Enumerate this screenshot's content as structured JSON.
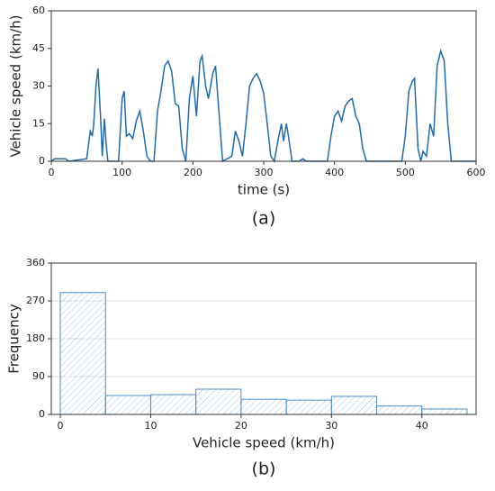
{
  "chart_data": [
    {
      "type": "line",
      "caption": "(a)",
      "xlabel": "time (s)",
      "ylabel": "Vehicle speed (km/h)",
      "color": "#1f6bb0",
      "grid": false,
      "xlim": [
        0,
        600
      ],
      "xticks": [
        0,
        100,
        200,
        300,
        400,
        500,
        600
      ],
      "ylim": [
        0,
        60
      ],
      "yticks": [
        0,
        15,
        30,
        45,
        60
      ],
      "x": [
        0,
        5,
        20,
        25,
        50,
        55,
        58,
        60,
        63,
        66,
        70,
        72,
        75,
        78,
        80,
        95,
        100,
        103,
        106,
        110,
        115,
        120,
        125,
        130,
        135,
        140,
        145,
        150,
        155,
        160,
        165,
        170,
        175,
        180,
        185,
        190,
        195,
        200,
        205,
        210,
        213,
        218,
        222,
        228,
        232,
        238,
        242,
        255,
        260,
        265,
        270,
        275,
        280,
        285,
        290,
        295,
        300,
        305,
        310,
        315,
        320,
        325,
        328,
        332,
        335,
        340,
        350,
        355,
        360,
        390,
        395,
        400,
        405,
        410,
        415,
        420,
        425,
        430,
        435,
        440,
        445,
        495,
        500,
        505,
        510,
        513,
        518,
        522,
        525,
        530,
        535,
        540,
        545,
        550,
        555,
        560,
        565,
        600
      ],
      "values": [
        0,
        1,
        1,
        0,
        1,
        12,
        10,
        15,
        30,
        37,
        15,
        2,
        17,
        5,
        0,
        0,
        25,
        28,
        10,
        11,
        9,
        16,
        20,
        12,
        2,
        0,
        0,
        20,
        28,
        38,
        40,
        36,
        23,
        22,
        5,
        0,
        25,
        34,
        18,
        40,
        42,
        30,
        25,
        35,
        38,
        15,
        0,
        2,
        12,
        8,
        2,
        15,
        30,
        33,
        35,
        32,
        27,
        15,
        2,
        0,
        8,
        15,
        8,
        15,
        10,
        0,
        0,
        1,
        0,
        0,
        10,
        18,
        20,
        16,
        22,
        24,
        25,
        18,
        15,
        5,
        0,
        0,
        10,
        28,
        32,
        33,
        5,
        0,
        4,
        2,
        15,
        10,
        38,
        44,
        40,
        15,
        0,
        0
      ]
    },
    {
      "type": "histogram",
      "caption": "(b)",
      "xlabel": "Vehicle speed (km/h)",
      "ylabel": "Frequency",
      "color": "#4a90d0",
      "grid": true,
      "xlim": [
        -1,
        46
      ],
      "xticks": [
        0,
        10,
        20,
        30,
        40
      ],
      "ylim": [
        0,
        360
      ],
      "yticks": [
        0,
        90,
        180,
        270,
        360
      ],
      "bins": [
        0,
        5,
        10,
        15,
        20,
        25,
        30,
        35,
        40,
        45
      ],
      "values": [
        290,
        45,
        47,
        60,
        36,
        34,
        43,
        20,
        13
      ]
    }
  ]
}
